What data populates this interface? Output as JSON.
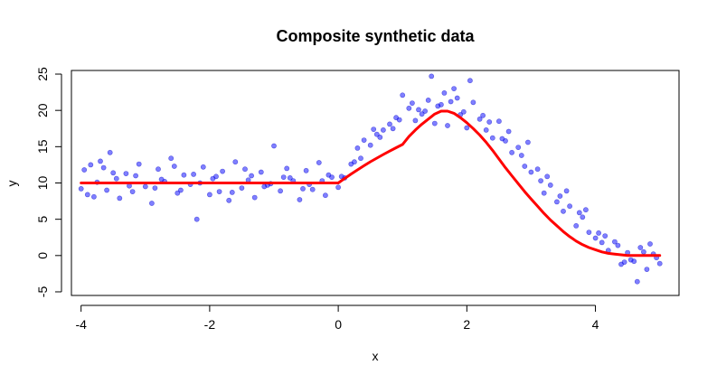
{
  "chart_data": {
    "type": "scatter",
    "title": "Composite synthetic data",
    "xlabel": "x",
    "ylabel": "y",
    "xlim": [
      -4.15,
      5.3
    ],
    "ylim": [
      -5.5,
      25.5
    ],
    "x_ticks": [
      -4,
      -2,
      0,
      2,
      4
    ],
    "y_ticks": [
      -5,
      0,
      5,
      10,
      15,
      20,
      25
    ],
    "x_tick_labels": [
      "-4",
      "-2",
      "0",
      "2",
      "4"
    ],
    "y_tick_labels": [
      "-5",
      "0",
      "5",
      "10",
      "15",
      "20",
      "25"
    ],
    "grid": false,
    "legend": "none",
    "colors": {
      "points": "#0000ff",
      "curve": "#ff0000"
    },
    "series": [
      {
        "kind": "points",
        "x": [
          -4.0,
          -3.95,
          -3.85,
          -3.8,
          -3.7,
          -3.6,
          -3.55,
          -3.45,
          -3.4,
          -3.3,
          -3.2,
          -3.1,
          -3.0,
          -2.9,
          -2.8,
          -2.7,
          -2.6,
          -2.5,
          -2.4,
          -2.3,
          -2.2,
          -2.1,
          -2.0,
          -1.9,
          -1.8,
          -1.7,
          -1.6,
          -1.5,
          -1.4,
          -1.3,
          -1.2,
          -1.1,
          -1.0,
          -0.9,
          -0.8,
          -0.7,
          -0.6,
          -0.5,
          -0.4,
          -0.3,
          -0.2,
          -0.1,
          0.0,
          0.1,
          0.2,
          0.3,
          0.4,
          0.5,
          0.6,
          0.7,
          0.8,
          0.9,
          1.0,
          1.1,
          1.2,
          1.3,
          1.4,
          1.5,
          1.6,
          1.7,
          1.8,
          1.9,
          2.0,
          2.1,
          2.2,
          2.3,
          2.4,
          2.5,
          2.6,
          2.7,
          2.8,
          2.9,
          3.0,
          3.1,
          3.2,
          3.3,
          3.4,
          3.5,
          3.6,
          3.7,
          3.8,
          3.9,
          4.0,
          4.1,
          4.2,
          4.3,
          4.4,
          4.5,
          4.6,
          4.7,
          4.8,
          4.9,
          5.0,
          -3.75,
          -3.5,
          -3.25,
          -2.75,
          -2.45,
          -2.25,
          -1.95,
          -1.65,
          -1.35,
          -1.05,
          -0.85,
          -0.55,
          -0.25,
          0.05,
          0.35,
          0.65,
          0.95,
          1.25,
          1.45,
          1.55,
          1.75,
          1.95,
          2.25,
          2.55,
          2.85,
          3.15,
          3.45,
          3.75,
          4.05,
          4.35,
          4.55,
          4.75,
          4.95,
          -3.9,
          -3.65,
          -3.15,
          -2.85,
          -2.55,
          -2.15,
          -1.85,
          -1.45,
          -1.15,
          -0.75,
          -0.45,
          -0.15,
          0.25,
          0.55,
          0.85,
          1.15,
          1.35,
          1.65,
          1.85,
          2.05,
          2.35,
          2.65,
          2.95,
          3.25,
          3.55,
          3.85,
          4.15,
          4.45,
          4.65,
          4.85
        ],
        "y": [
          9.2,
          11.8,
          12.5,
          8.1,
          13.0,
          9.0,
          14.2,
          10.6,
          7.9,
          11.3,
          8.8,
          12.6,
          9.5,
          7.2,
          11.9,
          10.2,
          13.4,
          8.6,
          11.1,
          9.8,
          5.0,
          12.2,
          8.4,
          10.9,
          11.6,
          7.6,
          12.9,
          9.3,
          10.4,
          8.0,
          11.5,
          9.7,
          15.1,
          8.9,
          12.0,
          10.3,
          7.7,
          11.7,
          9.1,
          12.8,
          8.3,
          10.8,
          9.4,
          10.7,
          12.6,
          14.8,
          15.9,
          15.2,
          16.7,
          17.3,
          18.1,
          19.0,
          22.1,
          20.3,
          18.6,
          19.5,
          21.4,
          18.2,
          20.8,
          17.9,
          23.0,
          19.4,
          17.6,
          21.1,
          18.8,
          17.3,
          16.2,
          18.5,
          15.8,
          14.2,
          14.9,
          12.3,
          11.5,
          11.9,
          8.6,
          9.7,
          7.4,
          6.1,
          6.8,
          4.1,
          5.3,
          3.2,
          2.4,
          1.8,
          0.7,
          1.9,
          -1.2,
          0.4,
          -0.8,
          1.1,
          -1.9,
          0.2,
          -1.1,
          10.1,
          11.4,
          9.6,
          10.5,
          9.0,
          11.2,
          10.6,
          8.7,
          11.0,
          9.9,
          10.8,
          9.2,
          10.3,
          10.9,
          13.4,
          16.3,
          18.7,
          20.1,
          24.7,
          20.6,
          21.2,
          19.8,
          19.3,
          16.1,
          13.8,
          10.3,
          8.2,
          5.9,
          3.1,
          1.4,
          -0.6,
          0.5,
          -0.3,
          8.4,
          12.1,
          11.0,
          9.3,
          12.3,
          10.0,
          8.8,
          11.9,
          9.5,
          10.7,
          9.8,
          11.1,
          12.9,
          17.4,
          17.5,
          21.0,
          19.9,
          22.4,
          21.7,
          24.1,
          18.4,
          17.1,
          15.6,
          10.9,
          8.9,
          6.3,
          2.7,
          -0.9,
          -3.6,
          1.6
        ]
      },
      {
        "kind": "line",
        "x": [
          -4.0,
          -3.0,
          -2.0,
          -1.0,
          0.0,
          0.1,
          0.2,
          0.3,
          0.4,
          0.5,
          0.6,
          0.7,
          0.8,
          0.9,
          1.0,
          1.1,
          1.2,
          1.3,
          1.4,
          1.5,
          1.6,
          1.7,
          1.8,
          1.9,
          2.0,
          2.1,
          2.2,
          2.3,
          2.4,
          2.5,
          2.6,
          2.7,
          2.8,
          2.9,
          3.0,
          3.1,
          3.2,
          3.3,
          3.4,
          3.5,
          3.6,
          3.7,
          3.8,
          3.9,
          4.0,
          4.1,
          4.2,
          4.3,
          4.4,
          4.5,
          4.6,
          4.7,
          4.8,
          4.9,
          5.0
        ],
        "y": [
          10.0,
          10.0,
          10.0,
          10.0,
          10.0,
          10.62,
          11.23,
          11.81,
          12.38,
          12.92,
          13.42,
          13.92,
          14.4,
          14.86,
          15.3,
          16.4,
          17.3,
          18.1,
          18.8,
          19.5,
          19.9,
          19.9,
          19.6,
          19.0,
          18.3,
          17.5,
          16.6,
          15.6,
          14.5,
          13.3,
          12.1,
          11.0,
          9.9,
          8.8,
          7.8,
          6.8,
          5.8,
          4.9,
          4.1,
          3.3,
          2.6,
          2.0,
          1.5,
          1.1,
          0.8,
          0.5,
          0.3,
          0.2,
          0.1,
          0.0,
          0.0,
          0.0,
          0.0,
          0.0,
          0.0
        ]
      }
    ]
  }
}
